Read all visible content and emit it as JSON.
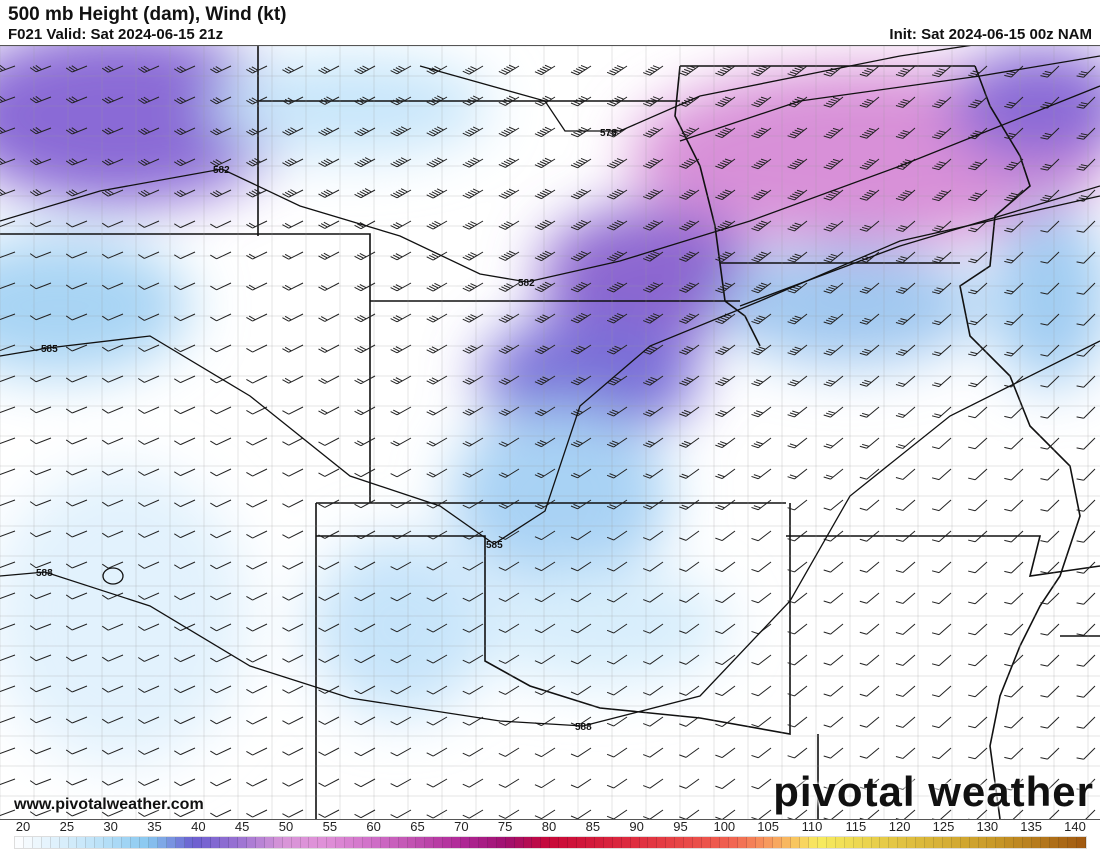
{
  "header": {
    "title": "500 mb Height (dam), Wind (kt)",
    "valid": "F021 Valid: Sat 2024-06-15 21z",
    "init": "Init: Sat 2024-06-15 00z NAM"
  },
  "map": {
    "contour_labels": [
      "579",
      "582",
      "582",
      "585",
      "585",
      "588",
      "588"
    ],
    "website": "www.pivotalweather.com",
    "logo": "pivotal weather"
  },
  "colorbar": {
    "min": 20,
    "max": 140,
    "step": 1,
    "unit": "kt",
    "tick_labels": [
      "20",
      "25",
      "30",
      "35",
      "40",
      "45",
      "50",
      "55",
      "60",
      "65",
      "70",
      "75",
      "80",
      "85",
      "90",
      "95",
      "100",
      "105",
      "110",
      "115",
      "120",
      "125",
      "130",
      "135",
      "140"
    ],
    "color_stops": [
      [
        20,
        "#ffffff"
      ],
      [
        30,
        "#b8e0f8"
      ],
      [
        35,
        "#88c8f0"
      ],
      [
        40,
        "#6a5ed0"
      ],
      [
        45,
        "#9a72d2"
      ],
      [
        50,
        "#d896d8"
      ],
      [
        55,
        "#e090d8"
      ],
      [
        60,
        "#d070c8"
      ],
      [
        65,
        "#c050b0"
      ],
      [
        70,
        "#b02898"
      ],
      [
        75,
        "#a01070"
      ],
      [
        80,
        "#c80838"
      ],
      [
        90,
        "#e03040"
      ],
      [
        100,
        "#f06050"
      ],
      [
        105,
        "#f8a060"
      ],
      [
        110,
        "#f8ec60"
      ],
      [
        120,
        "#e0c040"
      ],
      [
        130,
        "#c89828"
      ],
      [
        140,
        "#a05810"
      ]
    ]
  }
}
